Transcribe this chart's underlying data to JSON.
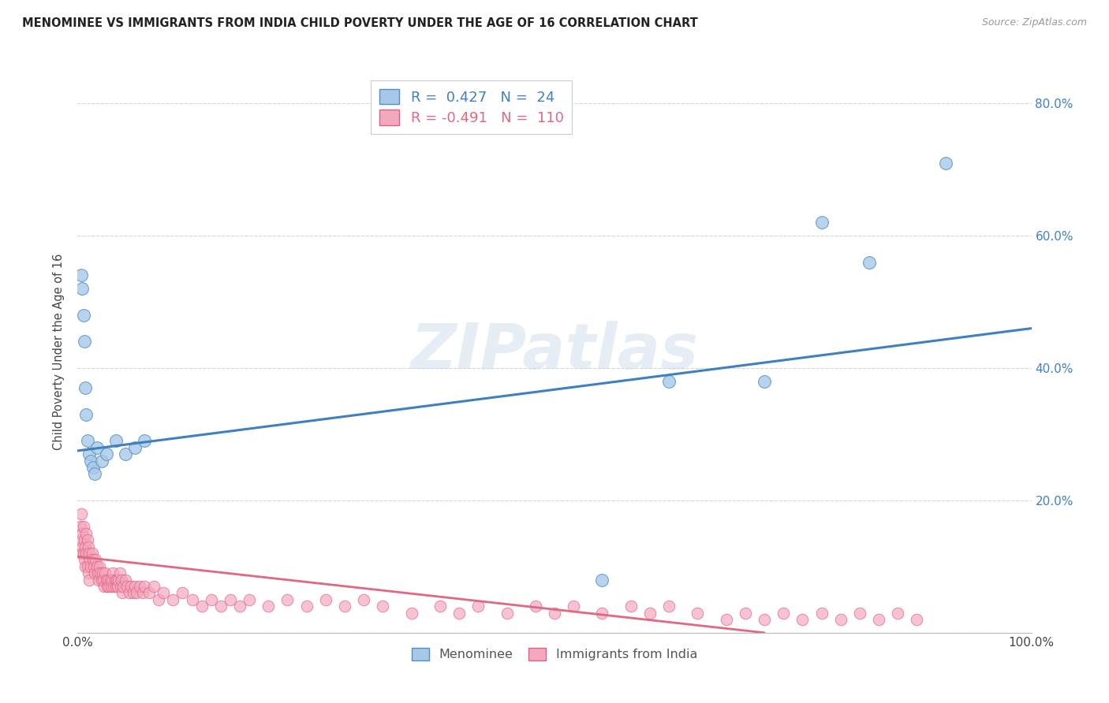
{
  "title": "MENOMINEE VS IMMIGRANTS FROM INDIA CHILD POVERTY UNDER THE AGE OF 16 CORRELATION CHART",
  "source": "Source: ZipAtlas.com",
  "ylabel": "Child Poverty Under the Age of 16",
  "xlim": [
    0,
    1.0
  ],
  "ylim": [
    0,
    0.85
  ],
  "background_color": "#ffffff",
  "grid_color": "#cccccc",
  "watermark": "ZIPatlas",
  "legend1_R": "0.427",
  "legend1_N": "24",
  "legend2_R": "-0.491",
  "legend2_N": "110",
  "menominee_color": "#a8c8e8",
  "india_color": "#f4a8be",
  "menominee_edge_color": "#5090c8",
  "india_edge_color": "#e06080",
  "menominee_line_color": "#4080c0",
  "india_line_color": "#e06880",
  "menominee_scatter_x": [
    0.004,
    0.005,
    0.006,
    0.007,
    0.008,
    0.009,
    0.01,
    0.012,
    0.014,
    0.016,
    0.018,
    0.02,
    0.025,
    0.03,
    0.04,
    0.05,
    0.06,
    0.07,
    0.55,
    0.62,
    0.72,
    0.78,
    0.83,
    0.91
  ],
  "menominee_scatter_y": [
    0.54,
    0.52,
    0.48,
    0.44,
    0.37,
    0.33,
    0.29,
    0.27,
    0.26,
    0.25,
    0.24,
    0.28,
    0.26,
    0.27,
    0.29,
    0.27,
    0.28,
    0.29,
    0.08,
    0.38,
    0.38,
    0.62,
    0.56,
    0.71
  ],
  "india_scatter_x": [
    0.002,
    0.003,
    0.004,
    0.004,
    0.005,
    0.005,
    0.006,
    0.006,
    0.007,
    0.007,
    0.008,
    0.008,
    0.009,
    0.009,
    0.01,
    0.01,
    0.011,
    0.011,
    0.012,
    0.012,
    0.013,
    0.014,
    0.015,
    0.016,
    0.017,
    0.018,
    0.019,
    0.02,
    0.021,
    0.022,
    0.023,
    0.024,
    0.025,
    0.026,
    0.027,
    0.028,
    0.029,
    0.03,
    0.031,
    0.032,
    0.033,
    0.034,
    0.035,
    0.036,
    0.037,
    0.038,
    0.039,
    0.04,
    0.041,
    0.042,
    0.043,
    0.044,
    0.045,
    0.046,
    0.047,
    0.048,
    0.05,
    0.052,
    0.054,
    0.056,
    0.058,
    0.06,
    0.062,
    0.065,
    0.068,
    0.07,
    0.075,
    0.08,
    0.085,
    0.09,
    0.1,
    0.11,
    0.12,
    0.13,
    0.14,
    0.15,
    0.16,
    0.17,
    0.18,
    0.2,
    0.22,
    0.24,
    0.26,
    0.28,
    0.3,
    0.32,
    0.35,
    0.38,
    0.4,
    0.42,
    0.45,
    0.48,
    0.5,
    0.52,
    0.55,
    0.58,
    0.6,
    0.62,
    0.65,
    0.68,
    0.7,
    0.72,
    0.74,
    0.76,
    0.78,
    0.8,
    0.82,
    0.84,
    0.86,
    0.88
  ],
  "india_scatter_y": [
    0.14,
    0.16,
    0.12,
    0.18,
    0.15,
    0.13,
    0.16,
    0.12,
    0.14,
    0.11,
    0.13,
    0.1,
    0.15,
    0.12,
    0.14,
    0.1,
    0.13,
    0.09,
    0.12,
    0.08,
    0.11,
    0.1,
    0.12,
    0.11,
    0.1,
    0.09,
    0.11,
    0.1,
    0.09,
    0.08,
    0.1,
    0.09,
    0.08,
    0.09,
    0.08,
    0.07,
    0.09,
    0.08,
    0.07,
    0.08,
    0.07,
    0.08,
    0.07,
    0.08,
    0.09,
    0.07,
    0.08,
    0.07,
    0.08,
    0.07,
    0.08,
    0.09,
    0.07,
    0.08,
    0.06,
    0.07,
    0.08,
    0.07,
    0.06,
    0.07,
    0.06,
    0.07,
    0.06,
    0.07,
    0.06,
    0.07,
    0.06,
    0.07,
    0.05,
    0.06,
    0.05,
    0.06,
    0.05,
    0.04,
    0.05,
    0.04,
    0.05,
    0.04,
    0.05,
    0.04,
    0.05,
    0.04,
    0.05,
    0.04,
    0.05,
    0.04,
    0.03,
    0.04,
    0.03,
    0.04,
    0.03,
    0.04,
    0.03,
    0.04,
    0.03,
    0.04,
    0.03,
    0.04,
    0.03,
    0.02,
    0.03,
    0.02,
    0.03,
    0.02,
    0.03,
    0.02,
    0.03,
    0.02,
    0.03,
    0.02
  ],
  "menominee_trend": [
    0.0,
    1.0,
    0.275,
    0.46
  ],
  "india_trend": [
    0.0,
    0.72,
    0.115,
    0.0
  ],
  "ytick_right_labels": [
    "",
    "20.0%",
    "40.0%",
    "60.0%",
    "80.0%"
  ],
  "ytick_vals": [
    0.0,
    0.2,
    0.4,
    0.6,
    0.8
  ]
}
